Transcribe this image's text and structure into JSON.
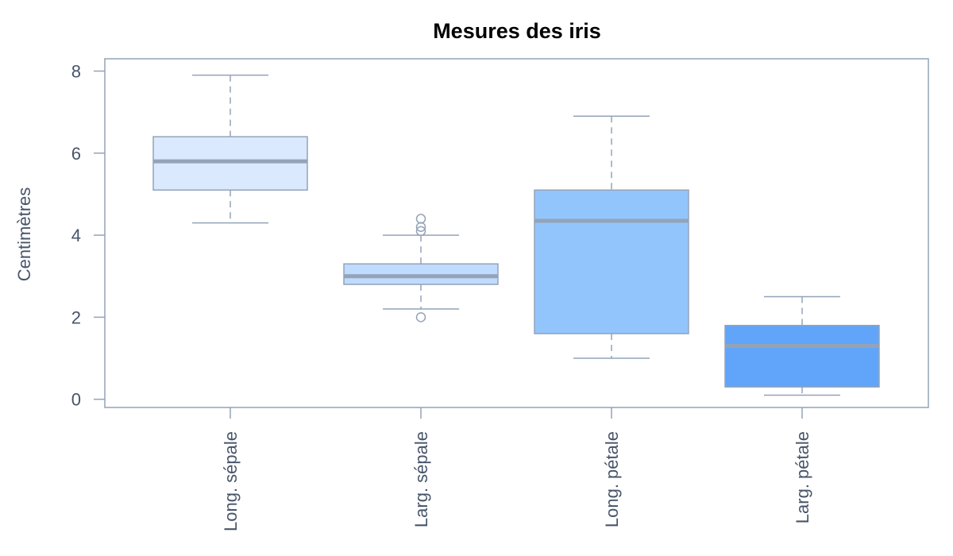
{
  "chart_data": {
    "type": "box",
    "title": "Mesures des iris",
    "xlabel": "",
    "ylabel": "Centimètres",
    "ylim": [
      -0.2,
      8.3
    ],
    "yticks": [
      0,
      2,
      4,
      6,
      8
    ],
    "legend": "none",
    "grid": false,
    "categories": [
      "Long. sépale",
      "Larg. sépale",
      "Long. pétale",
      "Larg. pétale"
    ],
    "boxes": [
      {
        "category": "Long. sépale",
        "whisker_low": 4.3,
        "q1": 5.1,
        "median": 5.8,
        "q3": 6.4,
        "whisker_high": 7.9,
        "outliers": []
      },
      {
        "category": "Larg. sépale",
        "whisker_low": 2.2,
        "q1": 2.8,
        "median": 3.0,
        "q3": 3.3,
        "whisker_high": 4.0,
        "outliers": [
          4.1,
          4.2,
          4.4,
          2.0
        ]
      },
      {
        "category": "Long. pétale",
        "whisker_low": 1.0,
        "q1": 1.6,
        "median": 4.35,
        "q3": 5.1,
        "whisker_high": 6.9,
        "outliers": []
      },
      {
        "category": "Larg. pétale",
        "whisker_low": 0.1,
        "q1": 0.3,
        "median": 1.3,
        "q3": 1.8,
        "whisker_high": 2.5,
        "outliers": []
      }
    ],
    "colors": {
      "fills": [
        "#dbe9fe",
        "#bfdbfe",
        "#93c5fd",
        "#60a5fa"
      ],
      "box_border": "#94a3b8",
      "median": "#94a3b8",
      "axis": "#94a3b8",
      "text": "#475569"
    }
  }
}
